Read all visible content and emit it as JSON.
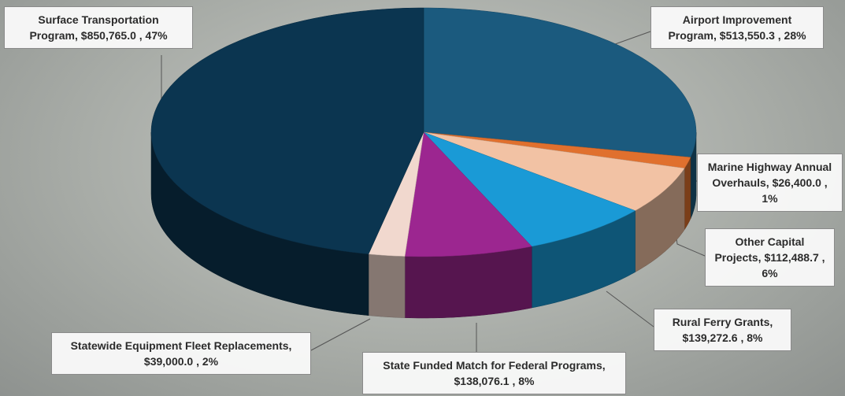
{
  "chart_data": {
    "type": "pie3d",
    "categories": [
      "Airport Improvement Program,",
      "Marine Highway Annual Overhauls,",
      "Other Capital Projects,",
      "Rural Ferry Grants,",
      "State Funded Match for Federal Programs,",
      "Statewide Equipment Fleet Replacements,",
      "Surface Transportation Program,"
    ],
    "values": [
      513550.3,
      26400.0,
      112488.7,
      139272.6,
      138076.1,
      39000.0,
      850765.0
    ],
    "value_labels": [
      "$513,550.3 , 28%",
      "$26,400.0 , 1%",
      "$112,488.7 , 6%",
      "$139,272.6 , 8%",
      "$138,076.1 , 8%",
      "$39,000.0 , 2%",
      "$850,765.0 , 47%"
    ],
    "colors": [
      "#1b5a7e",
      "#e0702e",
      "#f2c2a4",
      "#1a9ad6",
      "#9c2690",
      "#f1d8ce",
      "#0b3550"
    ]
  }
}
